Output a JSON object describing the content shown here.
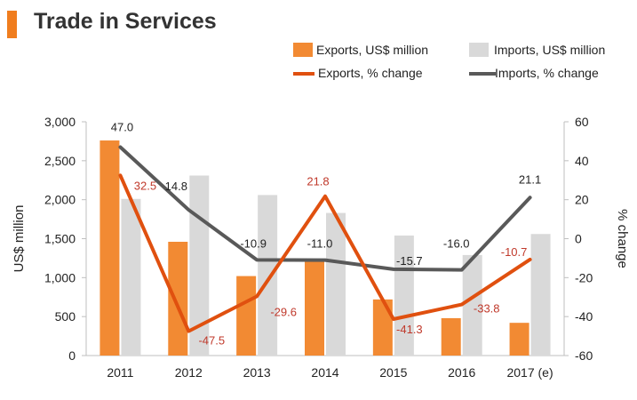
{
  "title": "Trade in Services",
  "colors": {
    "accent": "#F07D1E",
    "exports_bar": "#F28A33",
    "imports_bar": "#D9D9D9",
    "exports_line": "#E0500F",
    "imports_line": "#595959",
    "exports_label": "#C0392B"
  },
  "legend": {
    "exports_bar": "Exports, US$ million",
    "imports_bar": "Imports, US$ million",
    "exports_line": "Exports, % change",
    "imports_line": "Imports, % change"
  },
  "chart_data": {
    "type": "bar",
    "categories": [
      "2011",
      "2012",
      "2013",
      "2014",
      "2015",
      "2016",
      "2017 (e)"
    ],
    "series": [
      {
        "name": "Exports, US$ million",
        "type": "bar",
        "axis": "left",
        "values": [
          2760,
          1460,
          1020,
          1220,
          720,
          480,
          420
        ]
      },
      {
        "name": "Imports, US$ million",
        "type": "bar",
        "axis": "left",
        "values": [
          2010,
          2310,
          2060,
          1830,
          1540,
          1290,
          1560
        ]
      },
      {
        "name": "Exports, % change",
        "type": "line",
        "axis": "right",
        "values": [
          32.5,
          -47.5,
          -29.6,
          21.8,
          -41.3,
          -33.8,
          -10.7
        ],
        "labels": [
          "32.5",
          "-47.5",
          "-29.6",
          "21.8",
          "-41.3",
          "-33.8",
          "-10.7"
        ]
      },
      {
        "name": "Imports, % change",
        "type": "line",
        "axis": "right",
        "values": [
          47.0,
          14.8,
          -10.9,
          -11.0,
          -15.7,
          -16.0,
          21.1
        ],
        "labels": [
          "47.0",
          "14.8",
          "-10.9",
          "-11.0",
          "-15.7",
          "-16.0",
          "21.1"
        ]
      }
    ],
    "ylabel": "US$ million",
    "y2label": "% change",
    "ylim": [
      0,
      3000
    ],
    "y2lim": [
      -60,
      60
    ],
    "yticks": [
      "0",
      "500",
      "1,000",
      "1,500",
      "2,000",
      "2,500",
      "3,000"
    ],
    "y2ticks": [
      "-60",
      "-40",
      "-20",
      "0",
      "20",
      "40",
      "60"
    ],
    "grid": false,
    "legend_position": "top"
  }
}
